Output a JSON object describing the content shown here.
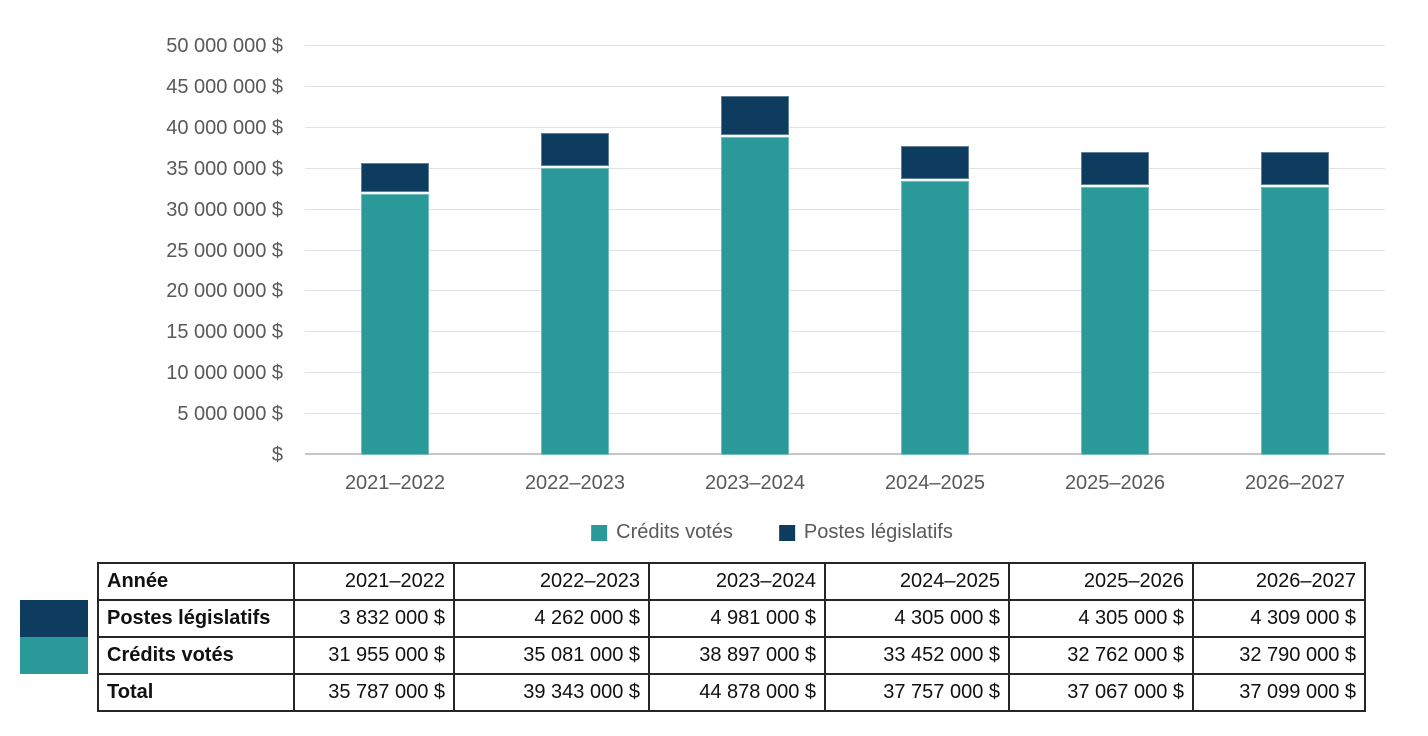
{
  "chart_data": {
    "type": "bar",
    "stacked": true,
    "title": "",
    "categories": [
      "2021–2022",
      "2022–2023",
      "2023–2024",
      "2024–2025",
      "2025–2026",
      "2026–2027"
    ],
    "series": [
      {
        "name": "Crédits votés",
        "color": "#2a9999",
        "values": [
          31955000,
          35081000,
          38897000,
          33452000,
          32762000,
          32790000
        ]
      },
      {
        "name": "Postes législatifs",
        "color": "#0d3c5e",
        "values": [
          3832000,
          4262000,
          4981000,
          4305000,
          4305000,
          4309000
        ]
      }
    ],
    "totals": [
      35787000,
      39343000,
      44878000,
      37757000,
      37067000,
      37099000
    ],
    "ylim": [
      0,
      50000000
    ],
    "ytick_step": 5000000,
    "ytick_labels": [
      "$",
      "5 000 000 $",
      "10 000 000 $",
      "15 000 000 $",
      "20 000 000 $",
      "25 000 000 $",
      "30 000 000 $",
      "35 000 000 $",
      "40 000 000 $",
      "45 000 000 $",
      "50 000 000 $"
    ],
    "grid": true,
    "legend_position": "bottom",
    "legend": [
      "Crédits votés",
      "Postes législatifs"
    ]
  },
  "table": {
    "header": [
      "Année",
      "2021–2022",
      "2022–2023",
      "2023–2024",
      "2024–2025",
      "2025–2026",
      "2026–2027"
    ],
    "rows": [
      {
        "label": "Postes législatifs",
        "swatch": "#0d3c5e",
        "values": [
          "3 832 000 $",
          "4 262 000 $",
          "4 981 000 $",
          "4 305 000 $",
          "4 305 000 $",
          "4 309 000 $"
        ]
      },
      {
        "label": "Crédits votés",
        "swatch": "#2a9999",
        "values": [
          "31 955 000 $",
          "35 081 000 $",
          "38 897 000 $",
          "33 452 000 $",
          "32 762 000 $",
          "32 790 000 $"
        ]
      },
      {
        "label": "Total",
        "swatch": null,
        "values": [
          "35 787 000 $",
          "39 343 000 $",
          "44 878 000 $",
          "37 757 000 $",
          "37 067 000 $",
          "37 099 000 $"
        ]
      }
    ]
  },
  "colors": {
    "teal": "#2a9999",
    "navy": "#0d3c5e",
    "axis_text": "#595959",
    "gridline": "#e2e2e2",
    "baseline": "#c6c6c6",
    "table_border": "#262626",
    "segment_separator": "#f2f9f9"
  }
}
